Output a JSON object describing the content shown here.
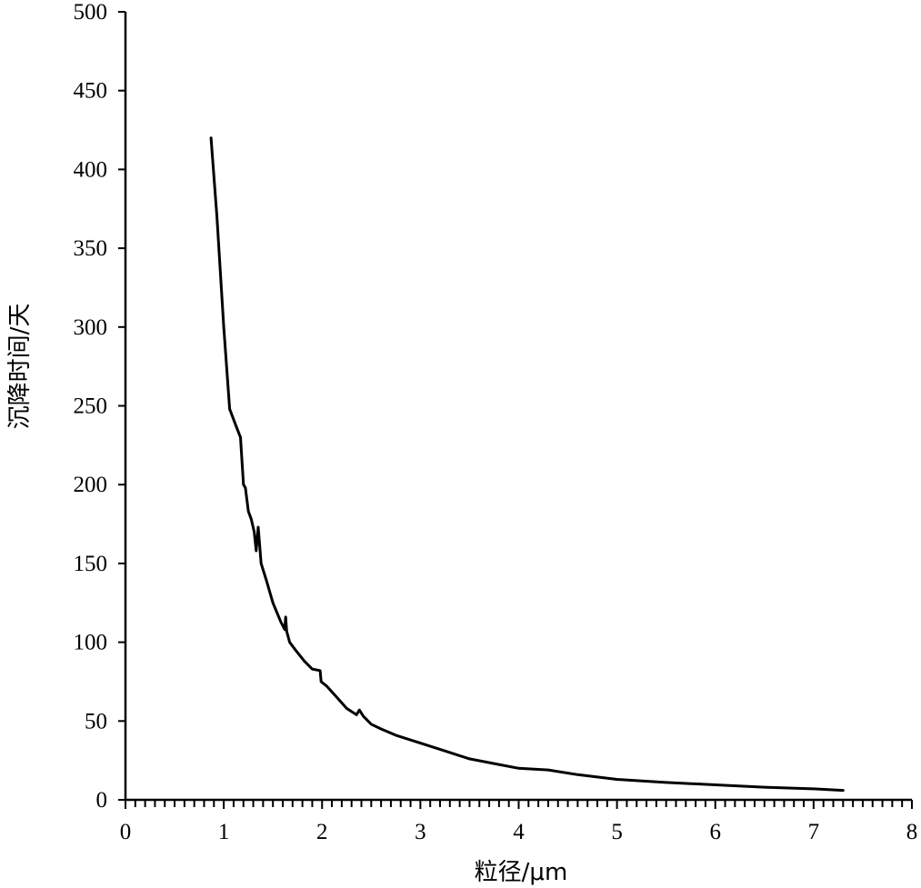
{
  "chart_data": {
    "type": "line",
    "xlabel": "粒径/μm",
    "ylabel": "沉降时间/天",
    "xlim": [
      0,
      8
    ],
    "ylim": [
      0,
      500
    ],
    "xticks": [
      0,
      1,
      2,
      3,
      4,
      5,
      6,
      7,
      8
    ],
    "yticks": [
      0,
      50,
      100,
      150,
      200,
      250,
      300,
      350,
      400,
      450,
      500
    ],
    "x_minor_step": 0.1,
    "grid": false,
    "legend": "none",
    "line_color": "#000000",
    "series": [
      {
        "points": [
          [
            0.87,
            420
          ],
          [
            0.93,
            370
          ],
          [
            1.0,
            300
          ],
          [
            1.06,
            248
          ],
          [
            1.12,
            238
          ],
          [
            1.17,
            230
          ],
          [
            1.2,
            200
          ],
          [
            1.22,
            198
          ],
          [
            1.25,
            183
          ],
          [
            1.28,
            178
          ],
          [
            1.31,
            170
          ],
          [
            1.33,
            158
          ],
          [
            1.35,
            173
          ],
          [
            1.38,
            150
          ],
          [
            1.43,
            140
          ],
          [
            1.5,
            125
          ],
          [
            1.58,
            113
          ],
          [
            1.62,
            108
          ],
          [
            1.63,
            116
          ],
          [
            1.64,
            107
          ],
          [
            1.67,
            100
          ],
          [
            1.73,
            95
          ],
          [
            1.82,
            88
          ],
          [
            1.9,
            83
          ],
          [
            1.98,
            82
          ],
          [
            1.99,
            75
          ],
          [
            2.05,
            72
          ],
          [
            2.15,
            65
          ],
          [
            2.25,
            58
          ],
          [
            2.35,
            54
          ],
          [
            2.38,
            57
          ],
          [
            2.42,
            53
          ],
          [
            2.5,
            48
          ],
          [
            2.6,
            45
          ],
          [
            2.75,
            41
          ],
          [
            3.0,
            36
          ],
          [
            3.25,
            31
          ],
          [
            3.5,
            26
          ],
          [
            3.75,
            23
          ],
          [
            4.0,
            20
          ],
          [
            4.3,
            19
          ],
          [
            4.6,
            16
          ],
          [
            5.0,
            13
          ],
          [
            5.5,
            11
          ],
          [
            6.0,
            9.5
          ],
          [
            6.5,
            8
          ],
          [
            7.0,
            7
          ],
          [
            7.3,
            6
          ]
        ]
      }
    ]
  }
}
